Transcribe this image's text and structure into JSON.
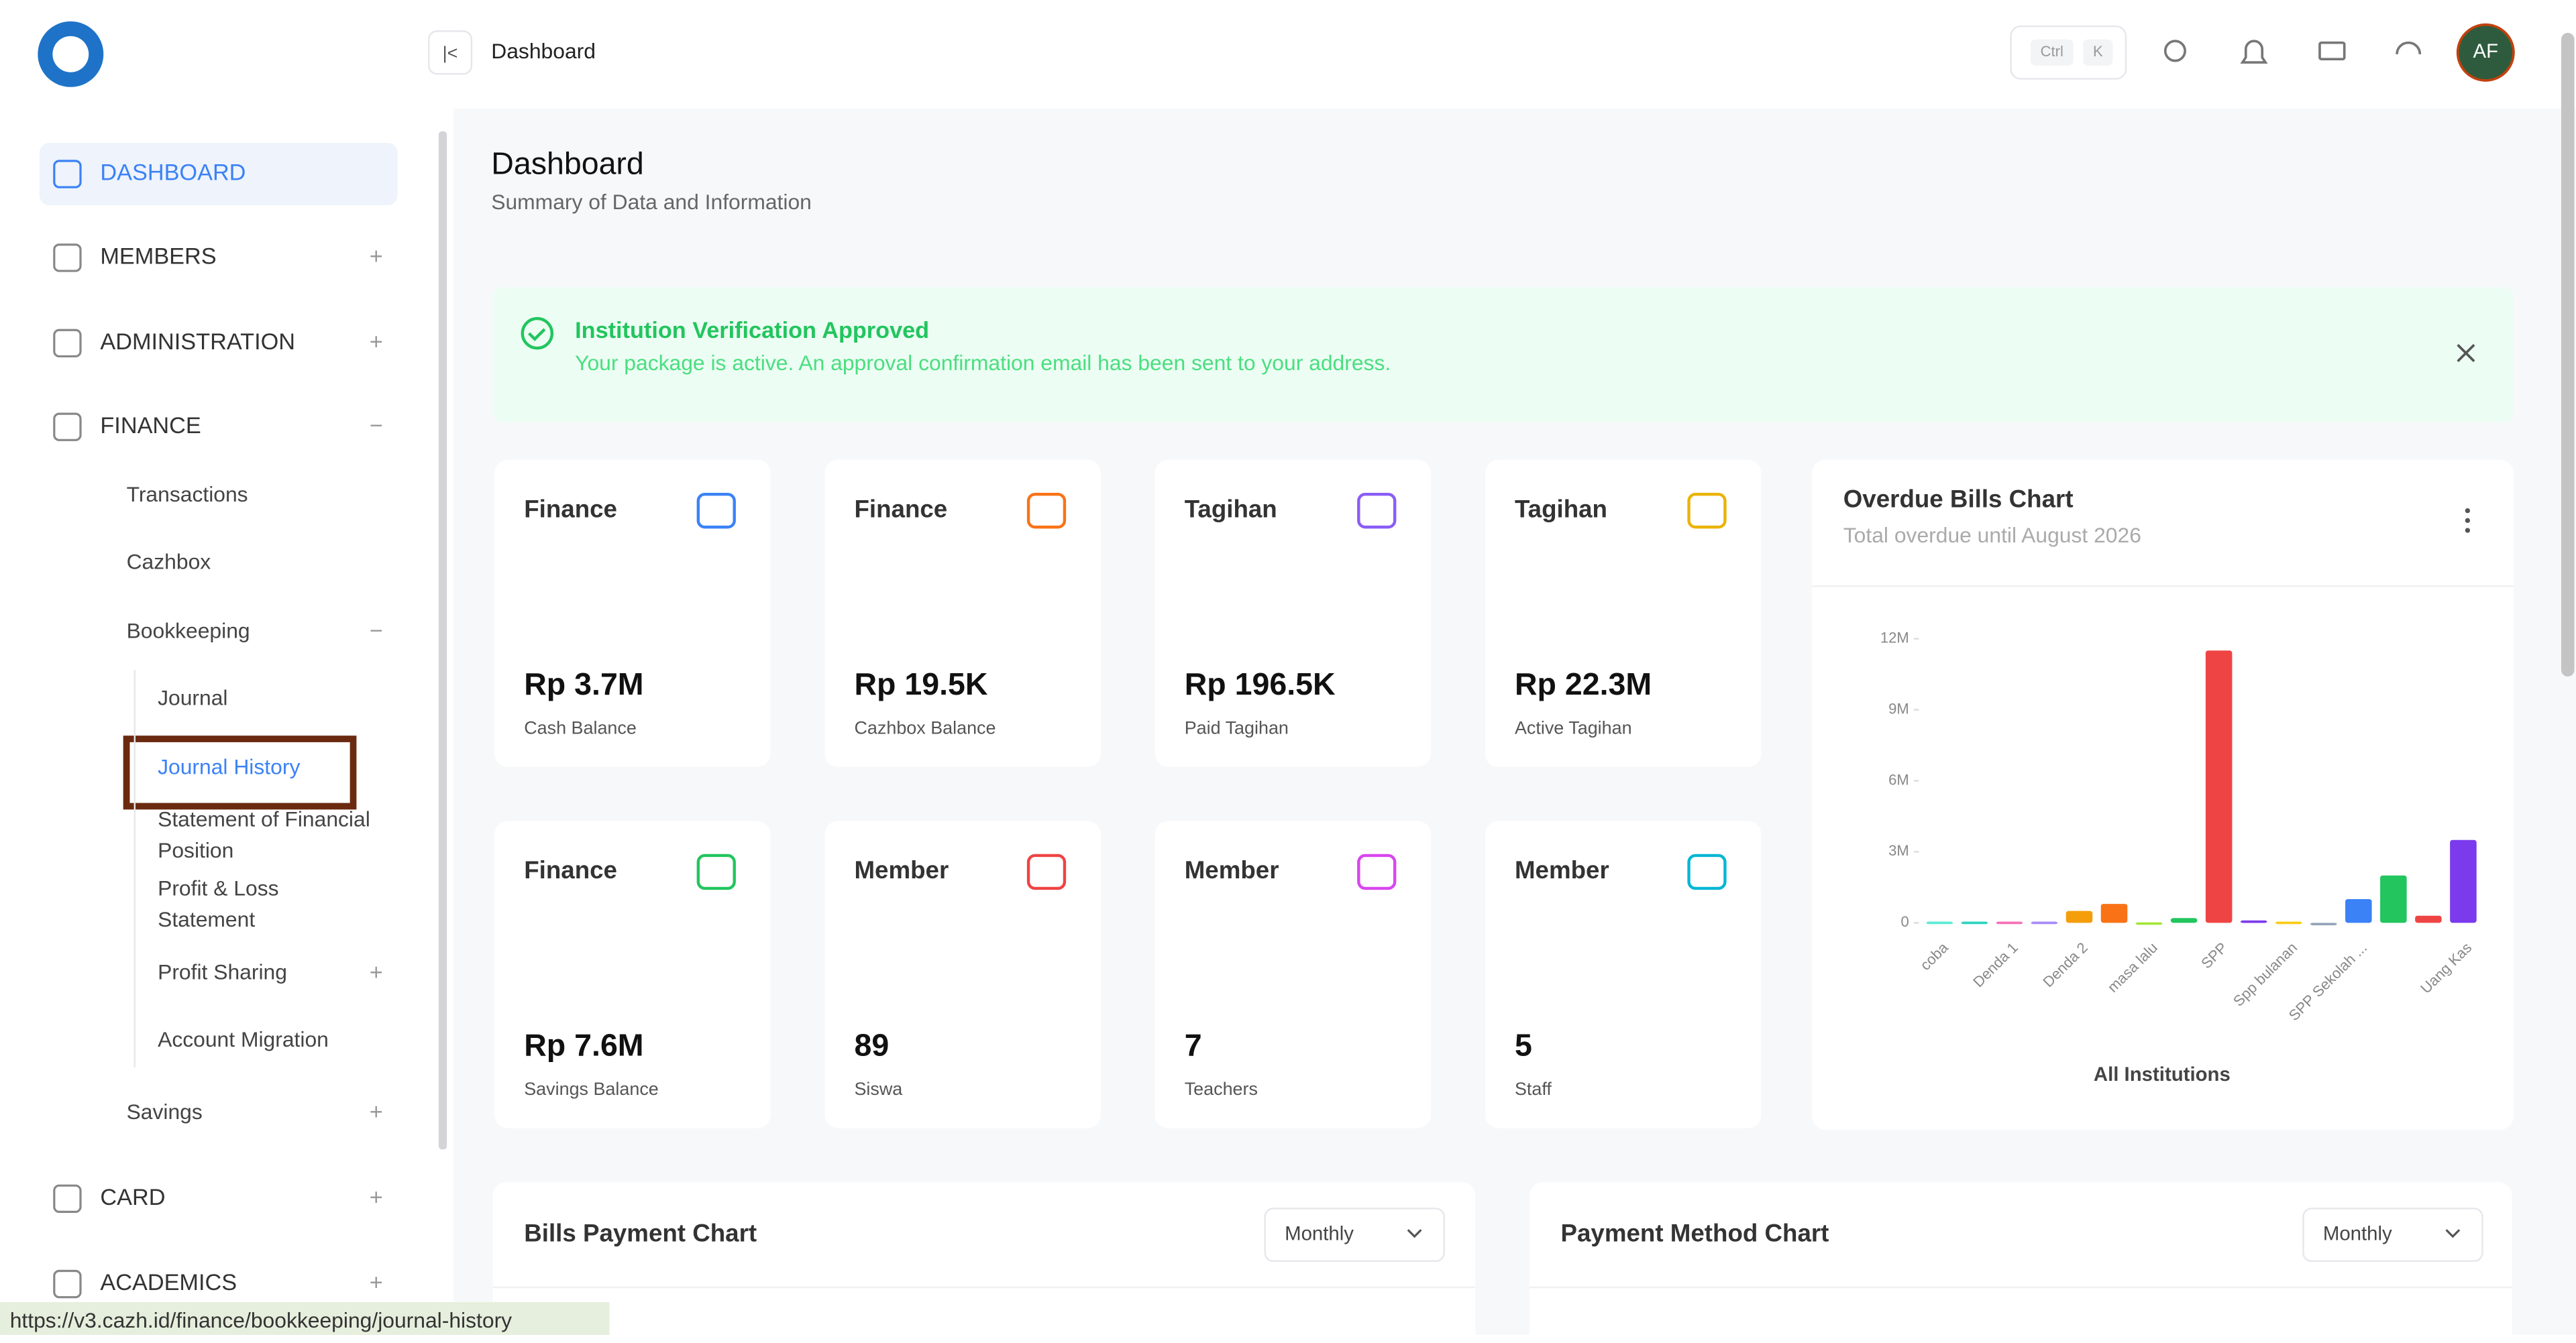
{
  "header": {
    "breadcrumb": "Dashboard",
    "shortcut": [
      "Ctrl",
      "K"
    ],
    "avatar": "AF"
  },
  "sidebar": {
    "items": [
      {
        "label": "DASHBOARD",
        "level": 0,
        "active": true
      },
      {
        "label": "MEMBERS",
        "level": 0,
        "toggle": "+"
      },
      {
        "label": "ADMINISTRATION",
        "level": 0,
        "toggle": "+"
      },
      {
        "label": "FINANCE",
        "level": 0,
        "toggle": "−"
      },
      {
        "label": "Transactions",
        "level": 1
      },
      {
        "label": "Cazhbox",
        "level": 1
      },
      {
        "label": "Bookkeeping",
        "level": 1,
        "toggle": "−"
      },
      {
        "label": "Journal",
        "level": 2
      },
      {
        "label": "Journal History",
        "level": 2,
        "selected": true
      },
      {
        "label": "Statement of Financial Position",
        "level": 2
      },
      {
        "label": "Profit & Loss Statement",
        "level": 2
      },
      {
        "label": "Profit Sharing",
        "level": 2,
        "toggle": "+"
      },
      {
        "label": "Account Migration",
        "level": 2
      },
      {
        "label": "Savings",
        "level": 1,
        "toggle": "+"
      },
      {
        "label": "CARD",
        "level": 0,
        "toggle": "+"
      },
      {
        "label": "ACADEMICS",
        "level": 0,
        "toggle": "+"
      }
    ]
  },
  "page": {
    "title": "Dashboard",
    "subtitle": "Summary of Data and Information"
  },
  "banner": {
    "title": "Institution Verification Approved",
    "text": "Your package is active. An approval confirmation email has been sent to your address."
  },
  "cards": [
    {
      "title": "Finance",
      "value": "Rp 3.7M",
      "label": "Cash Balance",
      "color": "#3b82f6"
    },
    {
      "title": "Finance",
      "value": "Rp 19.5K",
      "label": "Cazhbox Balance",
      "color": "#f97316"
    },
    {
      "title": "Tagihan",
      "value": "Rp 196.5K",
      "label": "Paid Tagihan",
      "color": "#8b5cf6"
    },
    {
      "title": "Tagihan",
      "value": "Rp 22.3M",
      "label": "Active Tagihan",
      "color": "#eab308"
    },
    {
      "title": "Finance",
      "value": "Rp 7.6M",
      "label": "Savings Balance",
      "color": "#22c55e"
    },
    {
      "title": "Member",
      "value": "89",
      "label": "Siswa",
      "color": "#ef4444"
    },
    {
      "title": "Member",
      "value": "7",
      "label": "Teachers",
      "color": "#d946ef"
    },
    {
      "title": "Member",
      "value": "5",
      "label": "Staff",
      "color": "#06b6d4"
    }
  ],
  "chart_data": {
    "type": "bar",
    "title": "Overdue Bills Chart",
    "subtitle": "Total overdue until August 2026",
    "x_label": "All Institutions",
    "categories": [
      "coba",
      null,
      "Denda 1",
      null,
      "Denda 2",
      null,
      "masa lalu",
      null,
      "SPP",
      null,
      "Spp bulanan",
      null,
      "SPP Sekolah ...",
      null,
      null,
      "Uang Kas"
    ],
    "values": [
      50000,
      50000,
      50000,
      50000,
      500000,
      800000,
      20000,
      200000,
      11500000,
      100000,
      50000,
      0,
      1000000,
      2000000,
      300000,
      3500000
    ],
    "colors": [
      "#5eead4",
      "#2dd4bf",
      "#f472b6",
      "#a78bfa",
      "#f59e0b",
      "#f97316",
      "#a3e635",
      "#22c55e",
      "#ef4444",
      "#7c3aed",
      "#facc15",
      "#94a3b8",
      "#3b82f6",
      "#22c55e",
      "#ef4444",
      "#7c3aed"
    ],
    "ylim": [
      0,
      12000000
    ],
    "yticks": [
      0,
      {
        "value": 3000000,
        "label": "3M"
      },
      {
        "value": 6000000,
        "label": "6M"
      },
      {
        "value": 9000000,
        "label": "9M"
      },
      {
        "value": 12000000,
        "label": "12M"
      }
    ]
  },
  "bottom": [
    {
      "title": "Bills Payment Chart",
      "select": "Monthly"
    },
    {
      "title": "Payment Method Chart",
      "select": "Monthly"
    }
  ],
  "status_url": "https://v3.cazh.id/finance/bookkeeping/journal-history"
}
